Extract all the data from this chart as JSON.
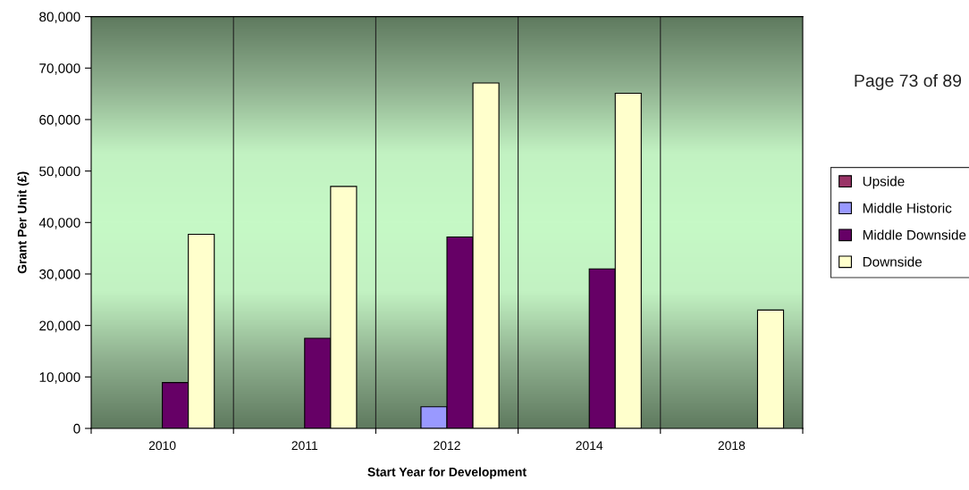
{
  "chart_data": {
    "type": "bar",
    "xlabel": "Start Year for Development",
    "ylabel": "Grant Per Unit (£)",
    "categories": [
      "2010",
      "2011",
      "2012",
      "2014",
      "2018"
    ],
    "series": [
      {
        "name": "Upside",
        "color": "#993366",
        "values": [
          null,
          null,
          null,
          null,
          null
        ]
      },
      {
        "name": "Middle Historic",
        "color": "#9999ff",
        "values": [
          null,
          null,
          4200,
          null,
          null
        ]
      },
      {
        "name": "Middle Downside",
        "color": "#660066",
        "values": [
          8900,
          17500,
          37200,
          31000,
          null
        ]
      },
      {
        "name": "Downside",
        "color": "#ffffcc",
        "values": [
          37700,
          47000,
          67100,
          65100,
          23000
        ]
      }
    ],
    "ylim": [
      0,
      80000
    ],
    "yticks": [
      {
        "value": 0,
        "label": "0"
      },
      {
        "value": 10000,
        "label": "10,000"
      },
      {
        "value": 20000,
        "label": "20,000"
      },
      {
        "value": 30000,
        "label": "30,000"
      },
      {
        "value": 40000,
        "label": "40,000"
      },
      {
        "value": 50000,
        "label": "50,000"
      },
      {
        "value": 60000,
        "label": "60,000"
      },
      {
        "value": 70000,
        "label": "70,000"
      },
      {
        "value": 80000,
        "label": "80,000"
      }
    ],
    "grid": "x",
    "legend": "right",
    "annotations": [
      "Page 73 of 89"
    ]
  }
}
